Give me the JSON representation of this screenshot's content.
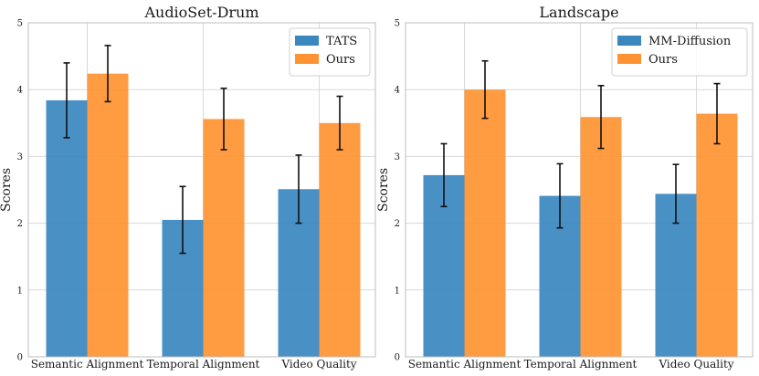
{
  "chart_data": [
    {
      "type": "bar",
      "title": "AudioSet-Drum",
      "xlabel": "",
      "ylabel": "Scores",
      "ylim": [
        0,
        5
      ],
      "yticks": [
        "0",
        "1",
        "2",
        "3",
        "4",
        "5"
      ],
      "categories": [
        "Semantic Alignment",
        "Temporal Alignment",
        "Video Quality"
      ],
      "legend_position": "top-right",
      "grid": true,
      "series": [
        {
          "name": "TATS",
          "color": "#3a87c0",
          "values": [
            3.84,
            2.05,
            2.51
          ],
          "errors": [
            0.56,
            0.5,
            0.51
          ]
        },
        {
          "name": "Ours",
          "color": "#ff9331",
          "values": [
            4.24,
            3.56,
            3.5
          ],
          "errors": [
            0.42,
            0.46,
            0.4
          ]
        }
      ]
    },
    {
      "type": "bar",
      "title": "Landscape",
      "xlabel": "",
      "ylabel": "Scores",
      "ylim": [
        0,
        5
      ],
      "yticks": [
        "0",
        "1",
        "2",
        "3",
        "4",
        "5"
      ],
      "categories": [
        "Semantic Alignment",
        "Temporal Alignment",
        "Video Quality"
      ],
      "legend_position": "top-right",
      "grid": true,
      "series": [
        {
          "name": "MM-Diffusion",
          "color": "#3a87c0",
          "values": [
            2.72,
            2.41,
            2.44
          ],
          "errors": [
            0.47,
            0.48,
            0.44
          ]
        },
        {
          "name": "Ours",
          "color": "#ff9331",
          "values": [
            4.0,
            3.59,
            3.64
          ],
          "errors": [
            0.43,
            0.47,
            0.45
          ]
        }
      ]
    }
  ]
}
